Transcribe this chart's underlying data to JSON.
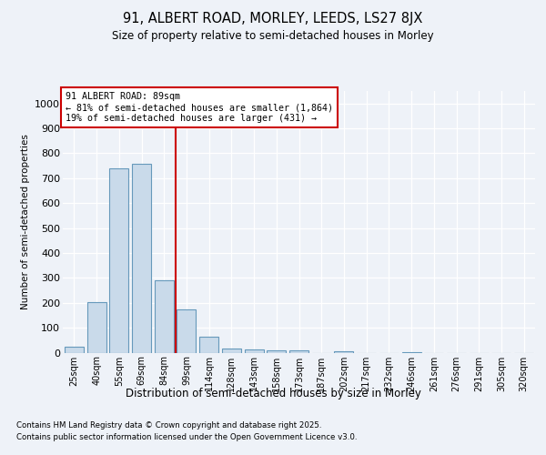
{
  "title1": "91, ALBERT ROAD, MORLEY, LEEDS, LS27 8JX",
  "title2": "Size of property relative to semi-detached houses in Morley",
  "xlabel": "Distribution of semi-detached houses by size in Morley",
  "ylabel": "Number of semi-detached properties",
  "categories": [
    "25sqm",
    "40sqm",
    "55sqm",
    "69sqm",
    "84sqm",
    "99sqm",
    "114sqm",
    "128sqm",
    "143sqm",
    "158sqm",
    "173sqm",
    "187sqm",
    "202sqm",
    "217sqm",
    "232sqm",
    "246sqm",
    "261sqm",
    "276sqm",
    "291sqm",
    "305sqm",
    "320sqm"
  ],
  "values": [
    22,
    203,
    740,
    758,
    290,
    173,
    65,
    17,
    14,
    10,
    10,
    0,
    5,
    0,
    0,
    3,
    0,
    0,
    0,
    0,
    0
  ],
  "bar_color": "#c9daea",
  "bar_edge_color": "#6699bb",
  "vline_x": 4.5,
  "vline_label": "91 ALBERT ROAD: 89sqm",
  "annotation_line1": "← 81% of semi-detached houses are smaller (1,864)",
  "annotation_line2": "19% of semi-detached houses are larger (431) →",
  "annotation_box_color": "#ffffff",
  "annotation_box_edge": "#cc0000",
  "vline_color": "#cc0000",
  "ylim": [
    0,
    1050
  ],
  "yticks": [
    0,
    100,
    200,
    300,
    400,
    500,
    600,
    700,
    800,
    900,
    1000
  ],
  "footnote1": "Contains HM Land Registry data © Crown copyright and database right 2025.",
  "footnote2": "Contains public sector information licensed under the Open Government Licence v3.0.",
  "background_color": "#eef2f8",
  "plot_bg_color": "#eef2f8"
}
